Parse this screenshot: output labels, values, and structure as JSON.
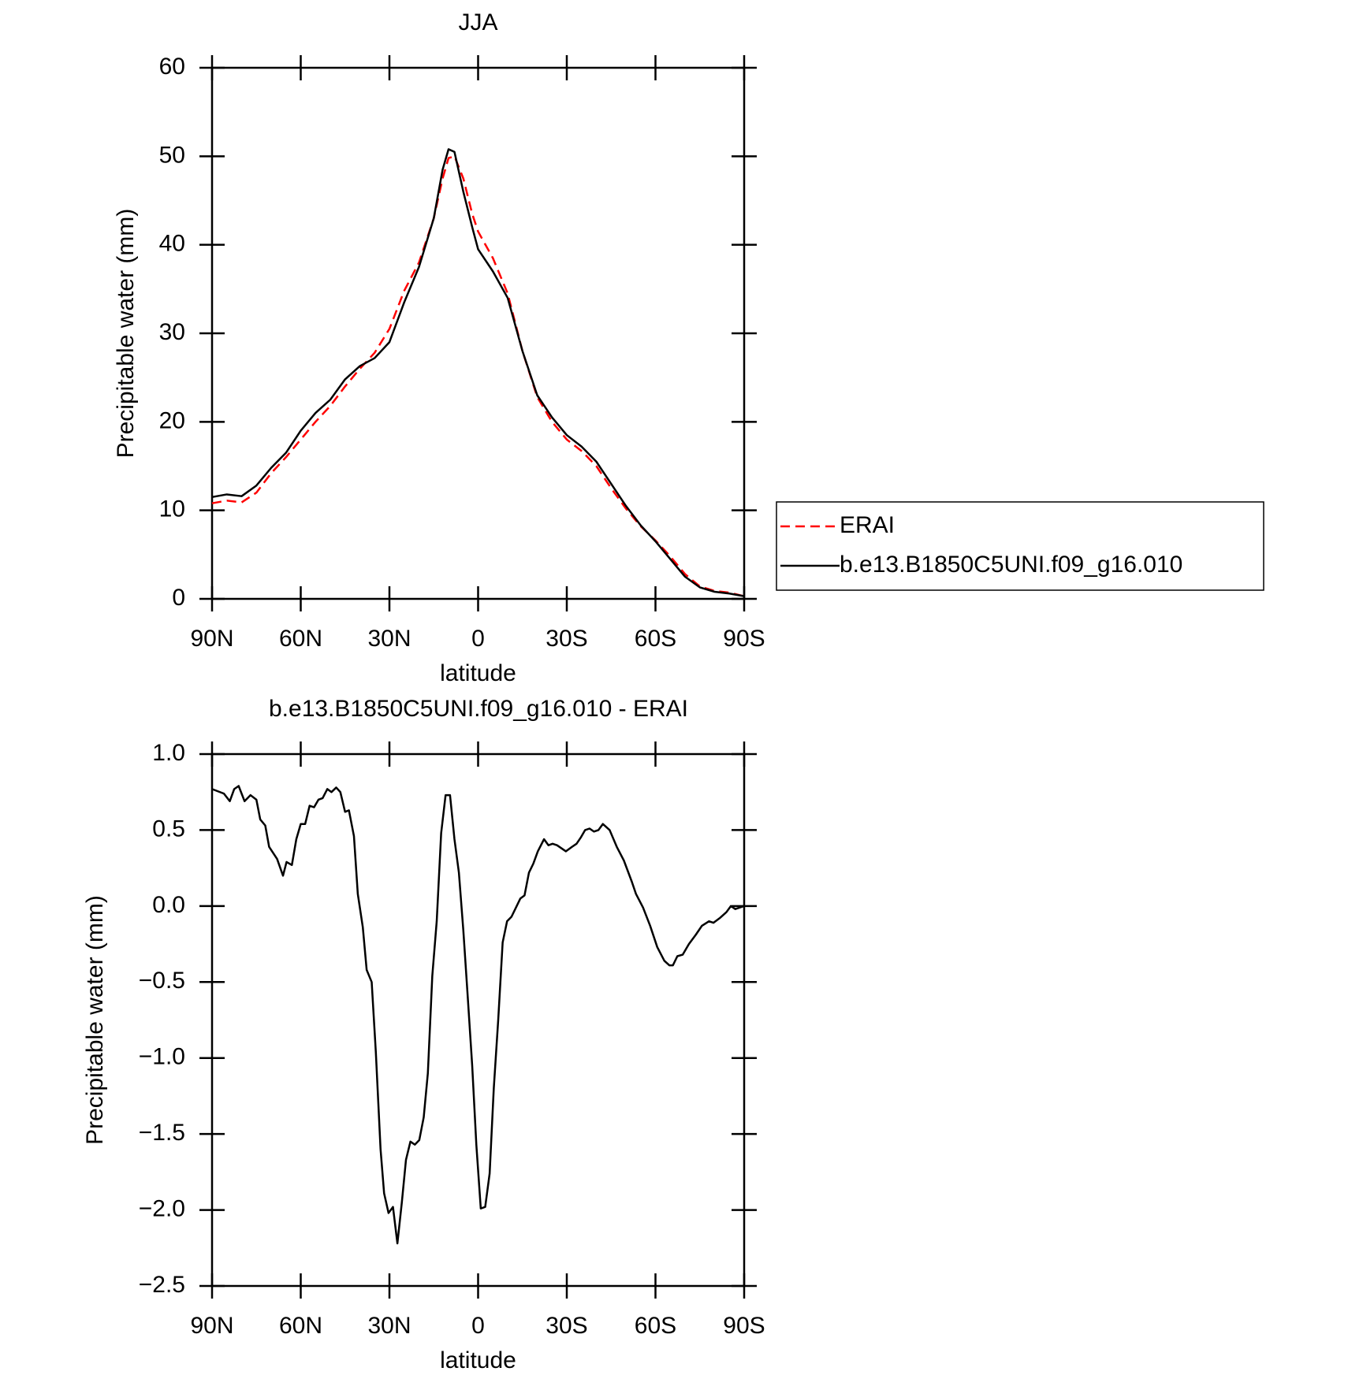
{
  "chart_data": [
    {
      "type": "line",
      "title": "JJA",
      "xlabel": "latitude",
      "ylabel": "Precipitable water (mm)",
      "x": [
        90,
        85,
        80,
        75,
        70,
        65,
        60,
        55,
        50,
        45,
        40,
        35,
        30,
        25,
        20,
        15,
        12,
        10,
        8,
        5,
        2,
        0,
        -5,
        -10,
        -15,
        -20,
        -25,
        -30,
        -35,
        -40,
        -45,
        -50,
        -55,
        -60,
        -65,
        -70,
        -75,
        -80,
        -85,
        -90
      ],
      "series": [
        {
          "name": "ERAI",
          "color": "#ff0000",
          "dash": true,
          "values": [
            10.8,
            11.1,
            10.9,
            12.0,
            14.2,
            16.0,
            18.0,
            20.0,
            21.8,
            24.0,
            26.0,
            27.8,
            30.5,
            34.8,
            38.0,
            43.0,
            47.5,
            49.8,
            50.0,
            47.5,
            43.5,
            41.5,
            38.5,
            34.5,
            28,
            22.8,
            20.0,
            18.0,
            16.7,
            15.0,
            12.5,
            10.2,
            8.2,
            6.6,
            4.8,
            2.8,
            1.4,
            0.9,
            0.7,
            0.3
          ]
        },
        {
          "name": "b.e13.B1850C5UNI.f09_g16.010",
          "color": "#000000",
          "dash": false,
          "values": [
            11.5,
            11.8,
            11.6,
            12.8,
            14.8,
            16.5,
            19.0,
            21.0,
            22.5,
            24.8,
            26.3,
            27.2,
            29.0,
            33.5,
            37.5,
            43.0,
            48.5,
            50.8,
            50.5,
            46,
            42,
            39.5,
            37,
            34,
            28,
            23,
            20.5,
            18.5,
            17.2,
            15.5,
            13.0,
            10.5,
            8.3,
            6.5,
            4.5,
            2.5,
            1.3,
            0.8,
            0.6,
            0.3
          ]
        }
      ],
      "xlim": [
        90,
        -90
      ],
      "xticks": [
        {
          "value": 90,
          "label": "90N"
        },
        {
          "value": 60,
          "label": "60N"
        },
        {
          "value": 30,
          "label": "30N"
        },
        0,
        {
          "value": -30,
          "label": "30S"
        },
        {
          "value": -60,
          "label": "60S"
        },
        {
          "value": -90,
          "label": "90S"
        }
      ],
      "ylim": [
        0,
        60
      ],
      "yticks": [
        0,
        10,
        20,
        30,
        40,
        50,
        60
      ],
      "legend": "right"
    },
    {
      "type": "line",
      "title": "b.e13.B1850C5UNI.f09_g16.010 - ERAI",
      "xlabel": "latitude",
      "ylabel": "Precipitable water (mm)",
      "x": [
        90,
        86,
        84,
        82.5,
        81,
        79,
        77,
        75,
        73.7,
        72,
        70.7,
        68,
        66,
        64.8,
        63,
        61.5,
        60,
        58.5,
        57,
        55.5,
        54,
        52.6,
        51,
        49.6,
        48,
        46.6,
        45,
        43.7,
        42,
        40.7,
        39,
        37.7,
        36,
        34.6,
        33,
        31.8,
        30.3,
        28.8,
        27.3,
        25.8,
        24.4,
        22.9,
        21.4,
        19.9,
        18.4,
        17,
        15.5,
        14,
        12.5,
        11,
        9.5,
        8,
        6.5,
        5,
        3.6,
        2,
        0.6,
        -0.9,
        -2.4,
        -3.9,
        -5.3,
        -6.8,
        -8.3,
        -9.8,
        -11.3,
        -12.8,
        -14.3,
        -15.7,
        -17.2,
        -18.7,
        -20.2,
        -22.3,
        -23.8,
        -25.2,
        -26.7,
        -28.2,
        -29.7,
        -31.8,
        -33.3,
        -34.7,
        -36.2,
        -37.7,
        -39.2,
        -40.7,
        -42.2,
        -44.5,
        -46.9,
        -49.3,
        -52,
        -53.4,
        -55.8,
        -58.2,
        -60.6,
        -63,
        -64.7,
        -65.9,
        -67.4,
        -69.2,
        -71.3,
        -73.6,
        -75.7,
        -78.1,
        -79.6,
        -81.7,
        -84,
        -85.5,
        -87,
        -90
      ],
      "values": [
        0.77,
        0.74,
        0.69,
        0.77,
        0.79,
        0.69,
        0.73,
        0.7,
        0.57,
        0.53,
        0.39,
        0.31,
        0.2,
        0.29,
        0.27,
        0.44,
        0.54,
        0.54,
        0.66,
        0.65,
        0.7,
        0.71,
        0.77,
        0.75,
        0.78,
        0.75,
        0.62,
        0.63,
        0.46,
        0.08,
        -0.14,
        -0.42,
        -0.5,
        -0.96,
        -1.6,
        -1.89,
        -2.02,
        -1.98,
        -2.22,
        -1.95,
        -1.67,
        -1.55,
        -1.57,
        -1.54,
        -1.39,
        -1.1,
        -0.46,
        -0.1,
        0.48,
        0.73,
        0.73,
        0.44,
        0.22,
        -0.16,
        -0.57,
        -1.05,
        -1.57,
        -1.99,
        -1.98,
        -1.76,
        -1.2,
        -0.75,
        -0.24,
        -0.1,
        -0.07,
        -0.01,
        0.05,
        0.07,
        0.22,
        0.28,
        0.36,
        0.44,
        0.4,
        0.41,
        0.4,
        0.38,
        0.36,
        0.39,
        0.41,
        0.45,
        0.5,
        0.51,
        0.49,
        0.5,
        0.54,
        0.5,
        0.39,
        0.3,
        0.16,
        0.08,
        -0.01,
        -0.13,
        -0.27,
        -0.36,
        -0.39,
        -0.39,
        -0.33,
        -0.32,
        -0.25,
        -0.19,
        -0.13,
        -0.1,
        -0.11,
        -0.08,
        -0.04,
        0.0,
        -0.02,
        0.0
      ],
      "color": "#000000",
      "xlim": [
        90,
        -90
      ],
      "xticks": [
        {
          "value": 90,
          "label": "90N"
        },
        {
          "value": 60,
          "label": "60N"
        },
        {
          "value": 30,
          "label": "30N"
        },
        0,
        {
          "value": -30,
          "label": "30S"
        },
        {
          "value": -60,
          "label": "60S"
        },
        {
          "value": -90,
          "label": "90S"
        }
      ],
      "ylim": [
        -2.5,
        1.0
      ],
      "yticks": [
        {
          "value": -2.5,
          "label": "−2.5"
        },
        {
          "value": -2.0,
          "label": "−2.0"
        },
        {
          "value": -1.5,
          "label": "−1.5"
        },
        {
          "value": -1.0,
          "label": "−1.0"
        },
        {
          "value": -0.5,
          "label": "−0.5"
        },
        {
          "value": 0,
          "label": "0.0"
        },
        {
          "value": 0.5,
          "label": "0.5"
        },
        {
          "value": 1.0,
          "label": "1.0"
        }
      ]
    }
  ]
}
